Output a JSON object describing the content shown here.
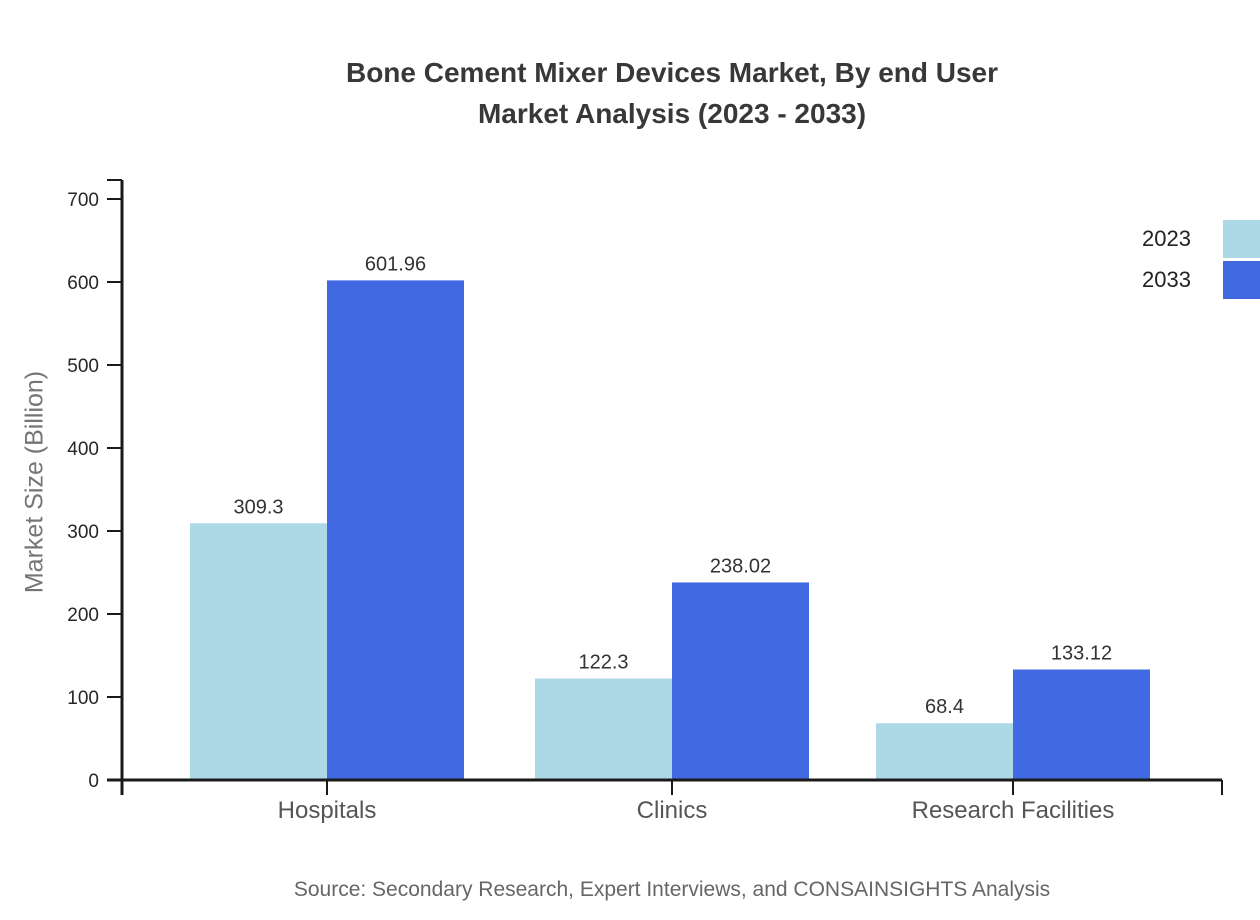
{
  "chart_data": {
    "type": "bar",
    "title_lines": [
      "Bone Cement Mixer Devices Market, By end User",
      "Market Analysis (2023 - 2033)"
    ],
    "categories": [
      "Hospitals",
      "Clinics",
      "Research Facilities"
    ],
    "series": [
      {
        "name": "2023",
        "color": "#ADD8E6",
        "values": [
          309.3,
          122.3,
          68.4
        ]
      },
      {
        "name": "2033",
        "color": "#4169E1",
        "values": [
          601.96,
          238.02,
          133.12
        ]
      }
    ],
    "xlabel": "",
    "ylabel": "Market Size (Billion)",
    "ylim": [
      0,
      700
    ],
    "yticks": [
      0,
      100,
      200,
      300,
      400,
      500,
      600,
      700
    ],
    "grid": false,
    "legend_position": "top-right"
  },
  "footer": {
    "source": "Source: Secondary Research, Expert Interviews, and CONSAINSIGHTS Analysis"
  },
  "colors": {
    "axis": "#1a1a1a",
    "title": "#383838",
    "y_tick_label": "#262626",
    "category_label": "#555555",
    "value_label": "#333333",
    "ylabel": "#757575",
    "source": "#666666"
  }
}
